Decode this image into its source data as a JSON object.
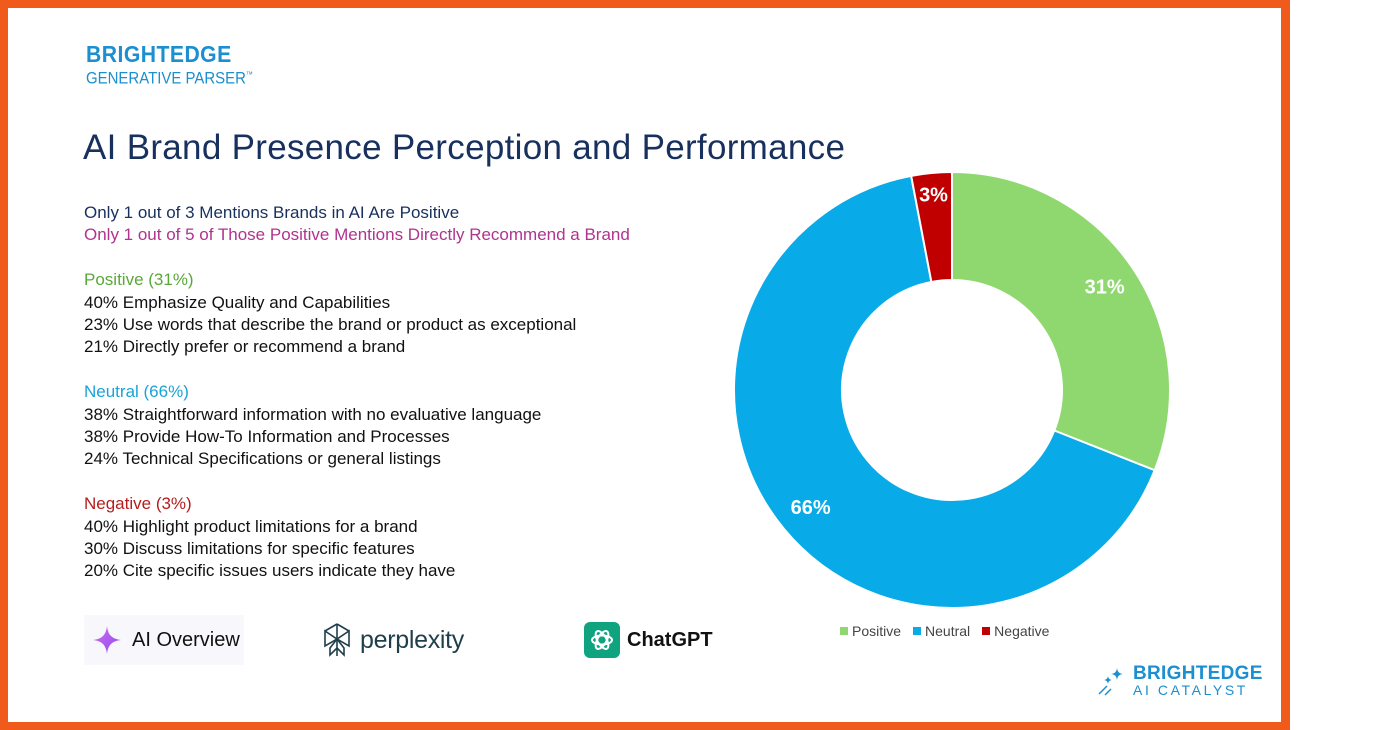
{
  "header": {
    "brand_name": "BRIGHTEDGE",
    "brand_sub": "GENERATIVE PARSER",
    "brand_tm": "™",
    "title": "AI Brand Presence Perception and Performance"
  },
  "summary": {
    "line1": "Only 1 out of 3 Mentions Brands in AI Are Positive",
    "line2": "Only 1 out of 5 of Those Positive Mentions Directly Recommend a Brand"
  },
  "sections": {
    "positive": {
      "heading": "Positive (31%)",
      "items": [
        "40% Emphasize Quality and Capabilities",
        "23% Use words that describe the brand or product as exceptional",
        "21% Directly prefer or recommend a brand"
      ]
    },
    "neutral": {
      "heading": "Neutral (66%)",
      "items": [
        "38% Straightforward information with no evaluative language",
        "38% Provide How-To Information and Processes",
        "24% Technical Specifications or general listings"
      ]
    },
    "negative": {
      "heading": "Negative (3%)",
      "items": [
        "40% Highlight product limitations for a brand",
        "30% Discuss limitations for specific features",
        "20% Cite specific issues users indicate they have"
      ]
    }
  },
  "chart_data": {
    "type": "pie",
    "variant": "donut",
    "categories": [
      "Positive",
      "Neutral",
      "Negative"
    ],
    "values": [
      31,
      66,
      3
    ],
    "labels": [
      "31%",
      "66%",
      "3%"
    ],
    "colors": [
      "#8fd870",
      "#08aae8",
      "#c00000"
    ],
    "legend": "bottom"
  },
  "logos": {
    "ai_overview": "AI Overview",
    "perplexity": "perplexity",
    "chatgpt": "ChatGPT"
  },
  "footer": {
    "brand_name": "BRIGHTEDGE",
    "brand_sub": "AI CATALYST"
  },
  "colors": {
    "frame": "#f05a1a",
    "brand_blue": "#1b8fd0",
    "title": "#17305e"
  }
}
